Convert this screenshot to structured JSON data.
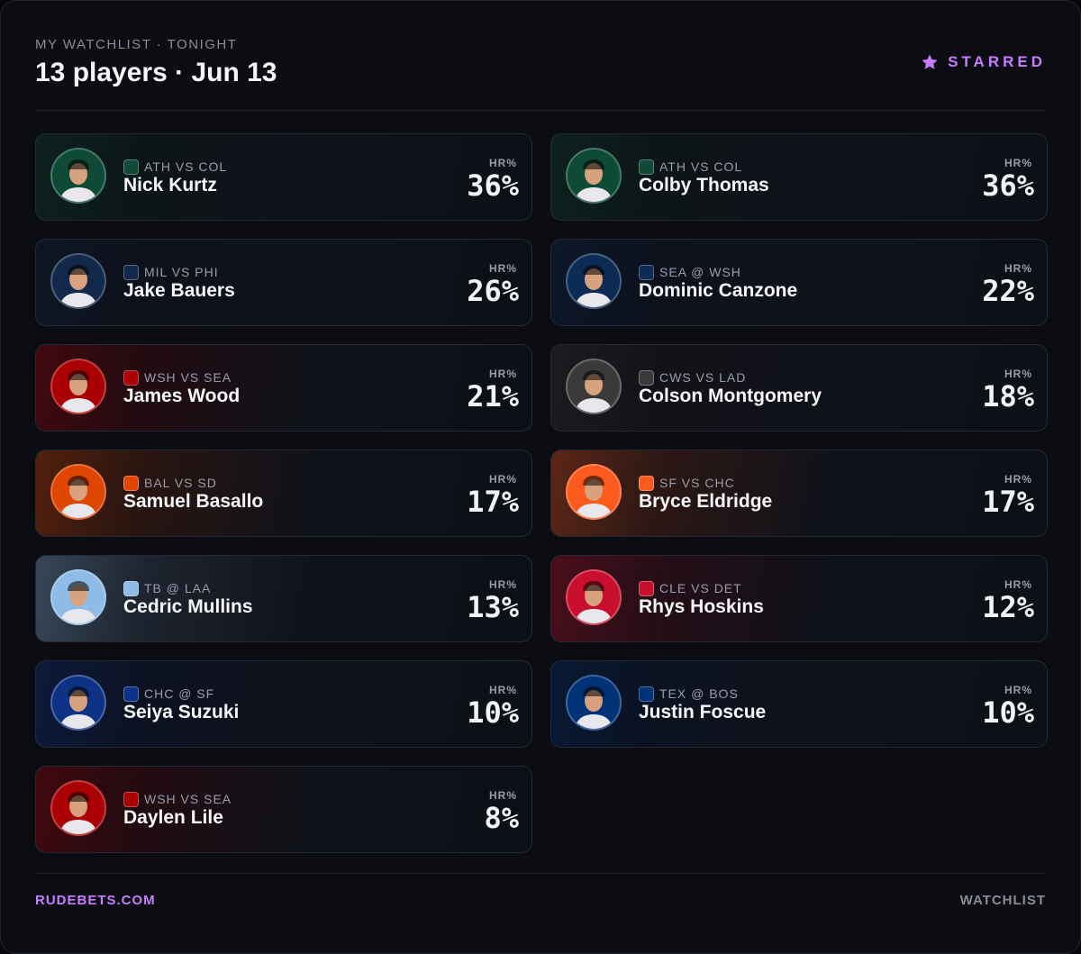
{
  "header": {
    "kicker": "MY WATCHLIST · TONIGHT",
    "title": "13 players · Jun 13",
    "badge": "STARRED"
  },
  "players": [
    {
      "name": "Nick Kurtz",
      "matchup": "ATH VS COL",
      "stat_label": "HR%",
      "stat": "36%",
      "color": "#0f4a36"
    },
    {
      "name": "Colby Thomas",
      "matchup": "ATH VS COL",
      "stat_label": "HR%",
      "stat": "36%",
      "color": "#0f4a36"
    },
    {
      "name": "Jake Bauers",
      "matchup": "MIL VS PHI",
      "stat_label": "HR%",
      "stat": "26%",
      "color": "#13294b"
    },
    {
      "name": "Dominic Canzone",
      "matchup": "SEA @ WSH",
      "stat_label": "HR%",
      "stat": "22%",
      "color": "#0c2c56"
    },
    {
      "name": "James Wood",
      "matchup": "WSH VS SEA",
      "stat_label": "HR%",
      "stat": "21%",
      "color": "#ab0003"
    },
    {
      "name": "Colson Montgomery",
      "matchup": "CWS VS LAD",
      "stat_label": "HR%",
      "stat": "18%",
      "color": "#3a3a3a"
    },
    {
      "name": "Samuel Basallo",
      "matchup": "BAL VS SD",
      "stat_label": "HR%",
      "stat": "17%",
      "color": "#df4601"
    },
    {
      "name": "Bryce Eldridge",
      "matchup": "SF VS CHC",
      "stat_label": "HR%",
      "stat": "17%",
      "color": "#fd5a1e"
    },
    {
      "name": "Cedric Mullins",
      "matchup": "TB @ LAA",
      "stat_label": "HR%",
      "stat": "13%",
      "color": "#8fbce6"
    },
    {
      "name": "Rhys Hoskins",
      "matchup": "CLE VS DET",
      "stat_label": "HR%",
      "stat": "12%",
      "color": "#c8102e"
    },
    {
      "name": "Seiya Suzuki",
      "matchup": "CHC @ SF",
      "stat_label": "HR%",
      "stat": "10%",
      "color": "#0e3386"
    },
    {
      "name": "Justin Foscue",
      "matchup": "TEX @ BOS",
      "stat_label": "HR%",
      "stat": "10%",
      "color": "#003278"
    },
    {
      "name": "Daylen Lile",
      "matchup": "WSH VS SEA",
      "stat_label": "HR%",
      "stat": "8%",
      "color": "#ab0003"
    }
  ],
  "footer": {
    "brand": "RUDEBETS.COM",
    "label": "WATCHLIST"
  }
}
